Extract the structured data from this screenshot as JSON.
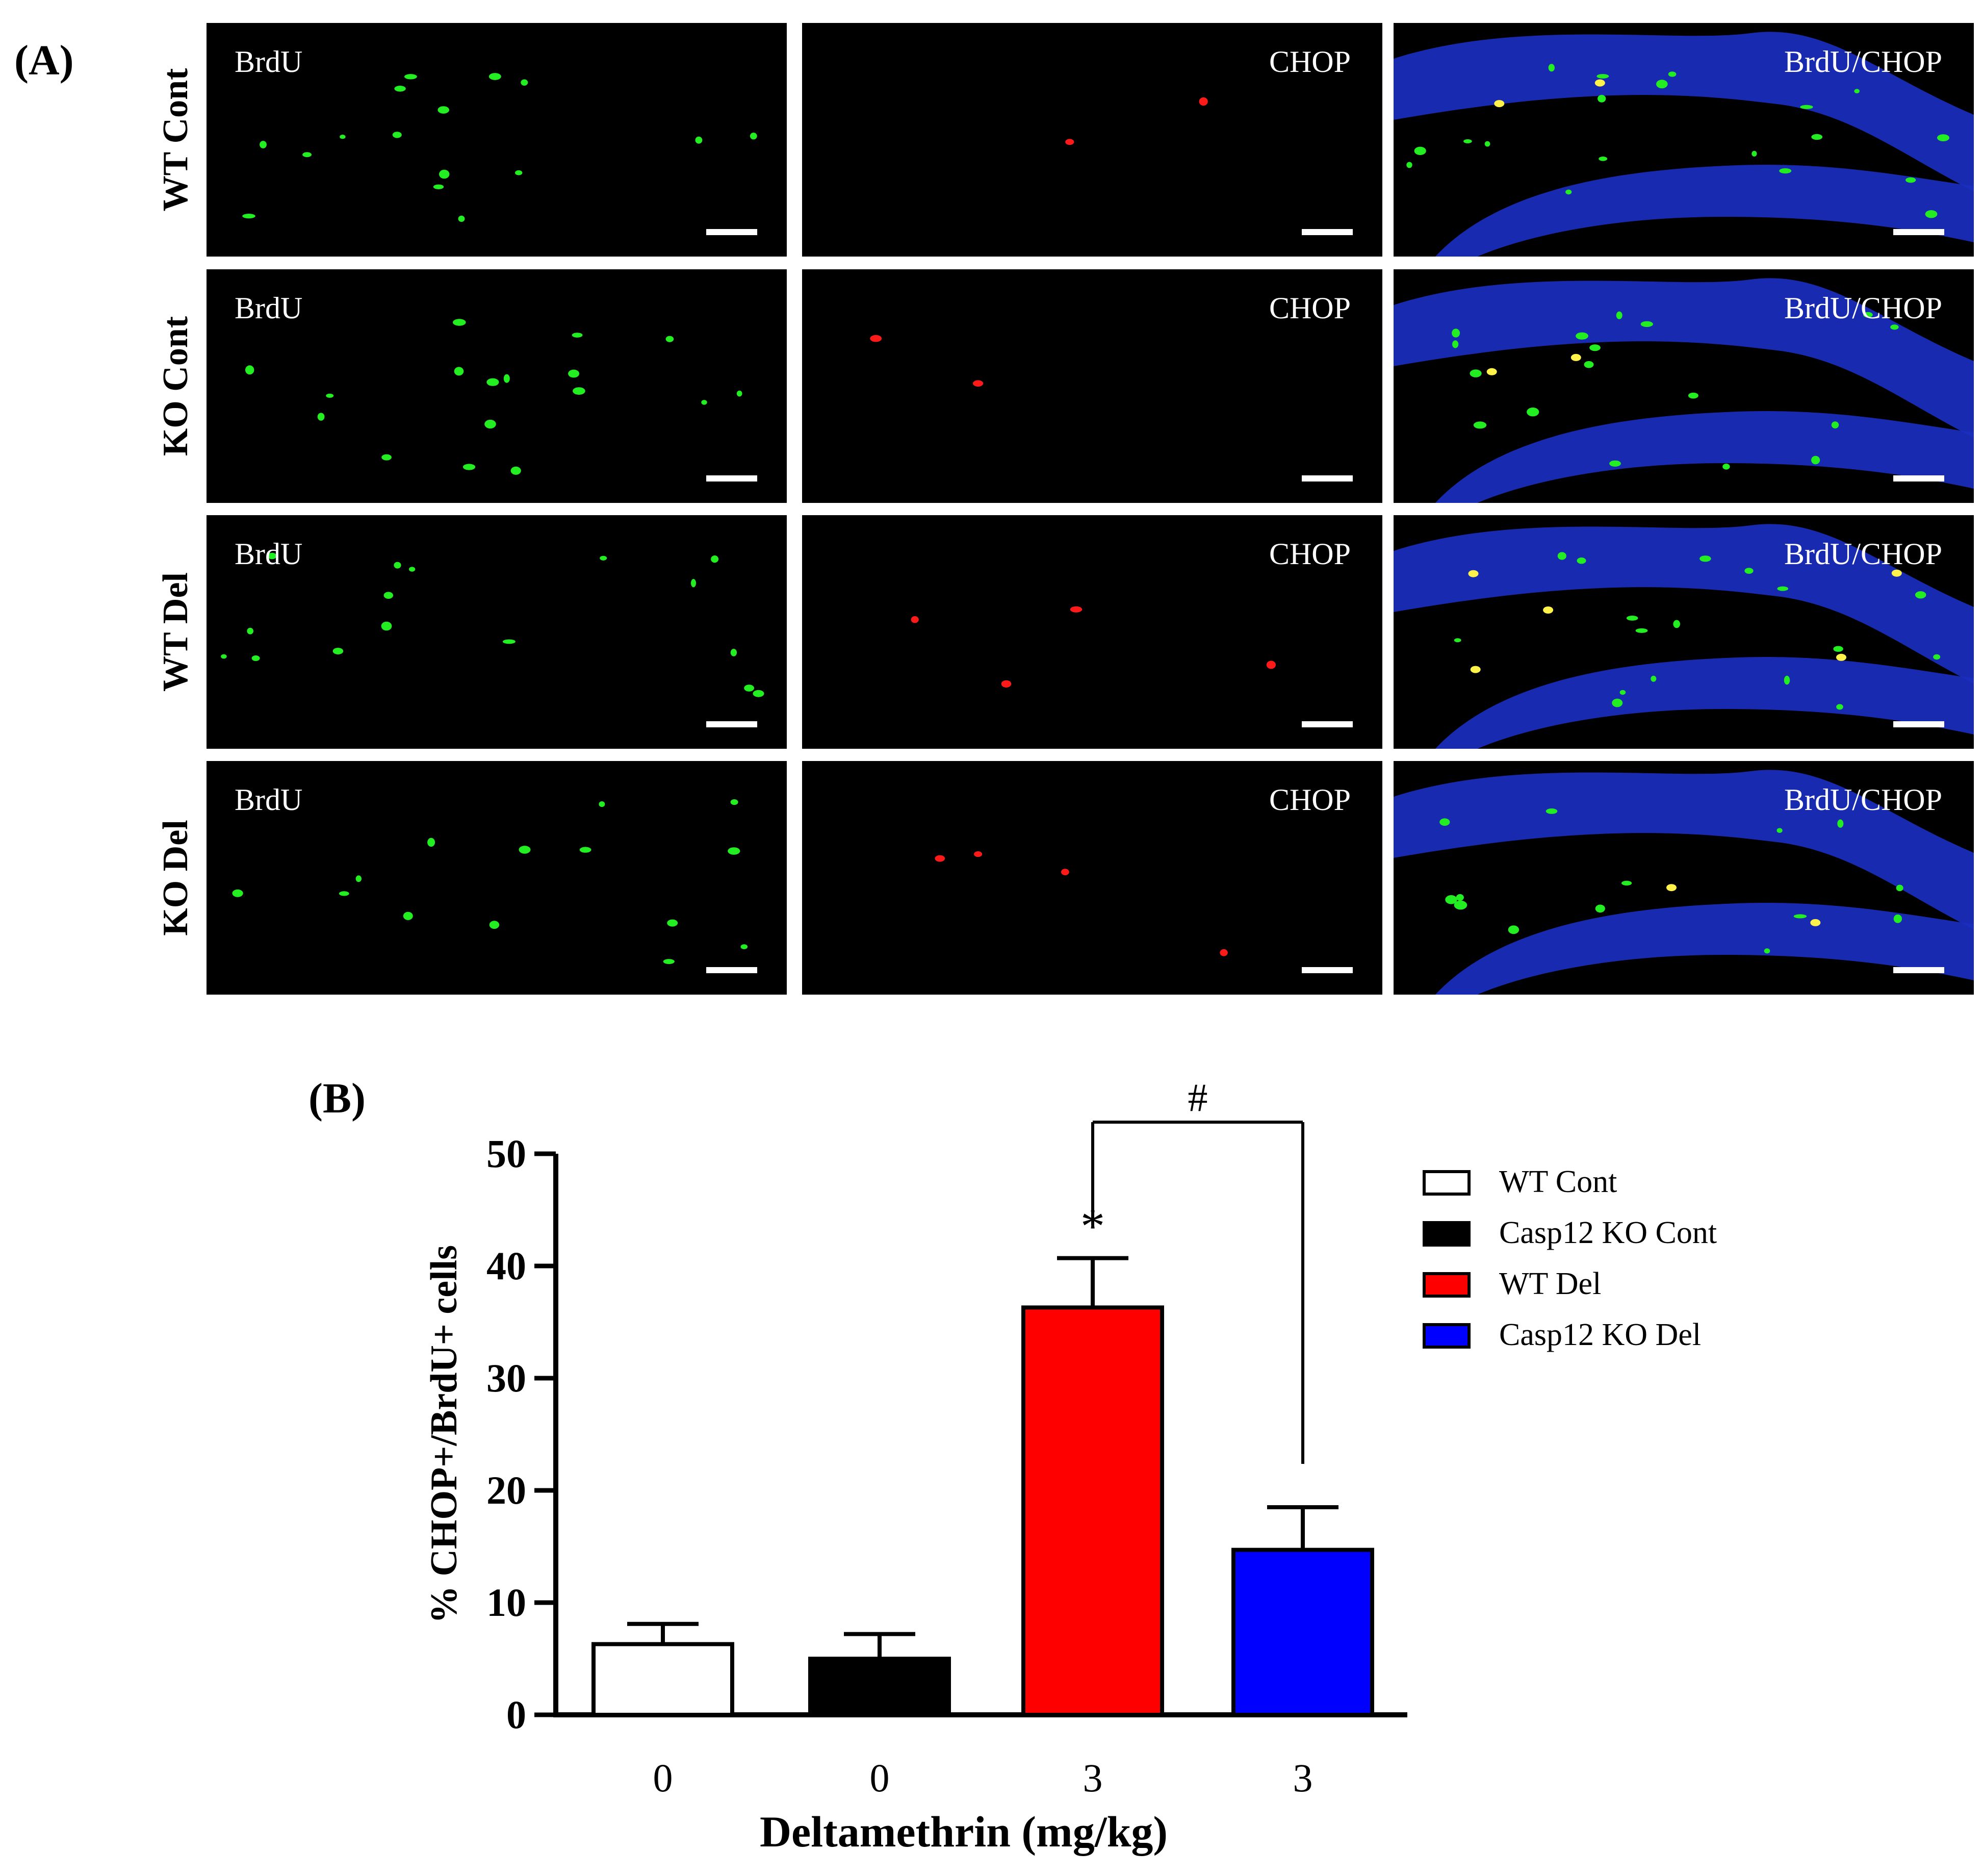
{
  "panel_a": {
    "label": "(A)",
    "rows": [
      {
        "name": "WT Cont"
      },
      {
        "name": "KO Cont"
      },
      {
        "name": "WT Del"
      },
      {
        "name": "KO Del"
      }
    ],
    "columns": [
      {
        "stain": "BrdU"
      },
      {
        "stain": "CHOP"
      },
      {
        "stain": "BrdU/CHOP"
      }
    ],
    "colors": {
      "brdu": "#22ee22",
      "chop": "#ff1a1a",
      "merge_bg": "#1a2fbf",
      "colocalized": "#fff24a"
    }
  },
  "panel_b": {
    "label": "(B)",
    "significance": {
      "star": "*",
      "hash": "#"
    }
  },
  "chart_data": {
    "type": "bar",
    "title": "",
    "xlabel": "Deltamethrin (mg/kg)",
    "ylabel": "% CHOP+/BrdU+ cells",
    "ylim": [
      0,
      50
    ],
    "yticks": [
      0,
      10,
      20,
      30,
      40,
      50
    ],
    "categories": [
      "0",
      "0",
      "3",
      "3"
    ],
    "series": [
      {
        "name": "WT Cont",
        "value": 6.3,
        "error": 1.8,
        "color": "#ffffff"
      },
      {
        "name": "Casp12 KO Cont",
        "value": 5.0,
        "error": 2.2,
        "color": "#000000"
      },
      {
        "name": "WT Del",
        "value": 36.3,
        "error": 4.4,
        "color": "#ff0000"
      },
      {
        "name": "Casp12 KO Del",
        "value": 14.7,
        "error": 3.8,
        "color": "#0000ff"
      }
    ],
    "annotations": [
      {
        "text": "*",
        "target": "WT Del",
        "meaning": "vs control"
      },
      {
        "text": "#",
        "between": [
          "WT Del",
          "Casp12 KO Del"
        ]
      }
    ],
    "legend_position": "right"
  }
}
